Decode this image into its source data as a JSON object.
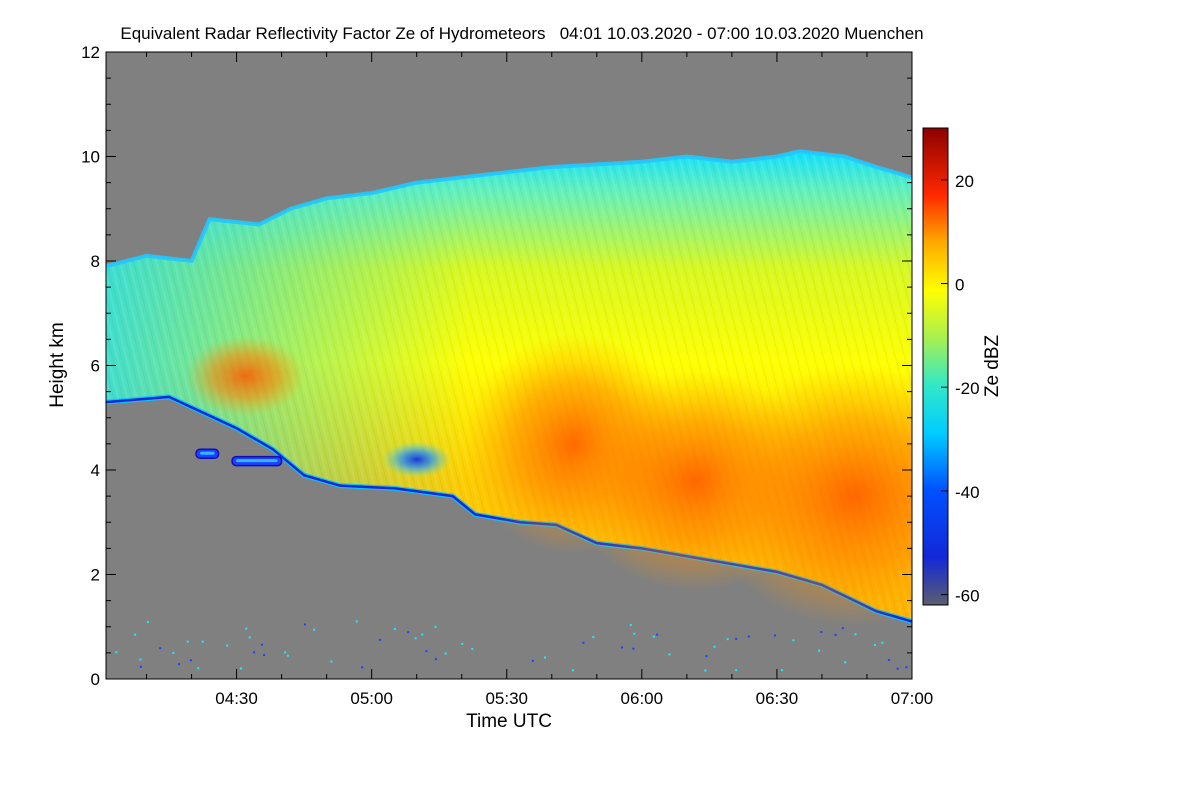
{
  "chart_data": {
    "type": "heatmap",
    "title": "Equivalent Radar Reflectivity Factor Ze of Hydrometeors   04:01 10.03.2020 - 07:00 10.03.2020 Muenchen",
    "xlabel": "Time UTC",
    "ylabel": "Height km",
    "colorbar_label": "Ze dBZ",
    "x_range_min": [
      241,
      420
    ],
    "xticks": [
      {
        "min": 270,
        "label": "04:30"
      },
      {
        "min": 300,
        "label": "05:00"
      },
      {
        "min": 330,
        "label": "05:30"
      },
      {
        "min": 360,
        "label": "06:00"
      },
      {
        "min": 390,
        "label": "06:30"
      },
      {
        "min": 420,
        "label": "07:00"
      }
    ],
    "ylim": [
      0,
      12
    ],
    "yticks": [
      0,
      2,
      4,
      6,
      8,
      10,
      12
    ],
    "clim": [
      -62,
      30
    ],
    "cticks": [
      -60,
      -40,
      -20,
      0,
      20
    ],
    "no_data_color": "#808080",
    "cloud_top_km": [
      [
        241,
        7.9
      ],
      [
        250,
        8.1
      ],
      [
        260,
        8.0
      ],
      [
        264,
        8.8
      ],
      [
        275,
        8.7
      ],
      [
        282,
        9.0
      ],
      [
        290,
        9.2
      ],
      [
        300,
        9.3
      ],
      [
        310,
        9.5
      ],
      [
        320,
        9.6
      ],
      [
        330,
        9.7
      ],
      [
        340,
        9.8
      ],
      [
        350,
        9.85
      ],
      [
        360,
        9.9
      ],
      [
        370,
        10.0
      ],
      [
        380,
        9.9
      ],
      [
        390,
        10.0
      ],
      [
        395,
        10.1
      ],
      [
        405,
        10.0
      ],
      [
        412,
        9.8
      ],
      [
        420,
        9.6
      ]
    ],
    "cloud_base_km": [
      [
        241,
        5.3
      ],
      [
        255,
        5.4
      ],
      [
        265,
        5.0
      ],
      [
        270,
        4.8
      ],
      [
        278,
        4.4
      ],
      [
        285,
        3.9
      ],
      [
        293,
        3.7
      ],
      [
        305,
        3.65
      ],
      [
        318,
        3.5
      ],
      [
        323,
        3.15
      ],
      [
        333,
        3.0
      ],
      [
        341,
        2.95
      ],
      [
        350,
        2.6
      ],
      [
        360,
        2.5
      ],
      [
        370,
        2.35
      ],
      [
        380,
        2.2
      ],
      [
        390,
        2.05
      ],
      [
        400,
        1.8
      ],
      [
        406,
        1.55
      ],
      [
        412,
        1.3
      ],
      [
        420,
        1.1
      ]
    ],
    "features": [
      {
        "name": "core-0440",
        "t": 272,
        "h": 5.8,
        "dbz": 5
      },
      {
        "name": "weak-echo-0510",
        "t": 310,
        "h": 4.2,
        "dbz": -38
      },
      {
        "name": "core-0545",
        "t": 345,
        "h": 4.5,
        "dbz": 10
      },
      {
        "name": "core-0610",
        "t": 372,
        "h": 3.8,
        "dbz": 12
      },
      {
        "name": "core-0645",
        "t": 407,
        "h": 3.5,
        "dbz": 15
      }
    ],
    "isolated_echoes": [
      {
        "t_from": 261,
        "t_to": 266,
        "h": 4.32,
        "dbz": -35
      },
      {
        "t_from": 269,
        "t_to": 280,
        "h": 4.18,
        "dbz": -33
      }
    ]
  }
}
